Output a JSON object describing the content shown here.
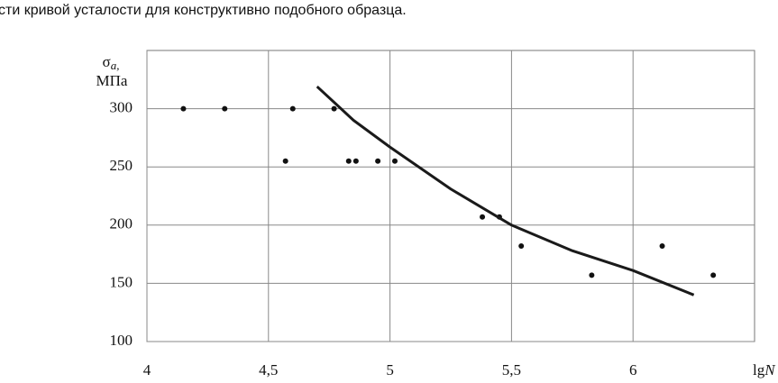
{
  "caption": "сти кривой усталости для конструктивно подобного образца.",
  "chart_data": {
    "type": "scatter",
    "ylabel": {
      "symbol": "σ",
      "subscript": "a,",
      "unit": "МПа"
    },
    "xlabel": {
      "text": "lg",
      "italic": "N"
    },
    "xlim": [
      4,
      6.5
    ],
    "ylim": [
      100,
      350
    ],
    "xticks": [
      4,
      {
        "value": 4.5,
        "label": "4,5"
      },
      5,
      {
        "value": 5.5,
        "label": "5,5"
      },
      6
    ],
    "yticks": [
      100,
      150,
      200,
      250,
      300
    ],
    "grid": true,
    "series": [
      {
        "style": "points",
        "color": "#111111",
        "x": [
          4.15,
          4.32,
          4.6,
          4.77,
          4.57,
          4.83,
          4.86,
          4.95,
          5.02,
          5.38,
          5.45,
          5.54,
          5.83,
          6.12,
          6.33
        ],
        "values": [
          300,
          300,
          300,
          300,
          255,
          255,
          255,
          255,
          255,
          207,
          207,
          182,
          157,
          182,
          157
        ]
      },
      {
        "style": "line",
        "color": "#1a1a1a",
        "x": [
          4.7,
          4.85,
          5,
          5.25,
          5.5,
          5.75,
          6,
          6.25
        ],
        "values": [
          319,
          290,
          267,
          231,
          200,
          178,
          161,
          140
        ]
      }
    ]
  }
}
